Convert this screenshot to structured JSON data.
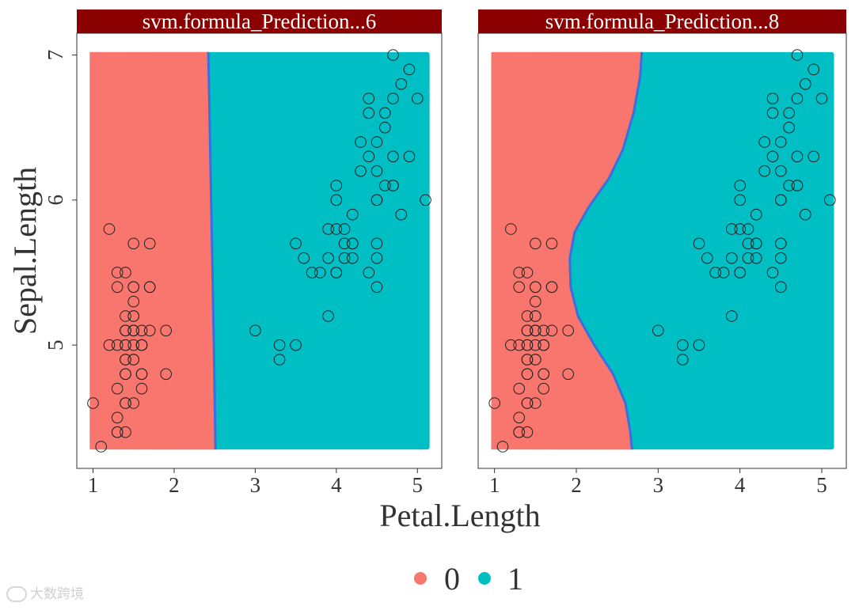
{
  "chart_data": {
    "type": "scatter",
    "xlabel": "Petal.Length",
    "ylabel": "Sepal.Length",
    "xlim": [
      0.8,
      5.3
    ],
    "ylim": [
      4.15,
      7.15
    ],
    "xticks": [
      1,
      2,
      3,
      4,
      5
    ],
    "yticks": [
      5,
      6,
      7
    ],
    "grid": false,
    "legend": {
      "position": "bottom",
      "entries": [
        {
          "label": "0",
          "color": "#F8766D"
        },
        {
          "label": "1",
          "color": "#00BFC4"
        }
      ]
    },
    "region_x_range": [
      0.96,
      5.15
    ],
    "region_y_range": [
      4.28,
      7.02
    ],
    "boundary_color": "#3B6FE0",
    "strip_color": "#8B0000",
    "panels": [
      {
        "strip_label": "svm.formula_Prediction...6",
        "boundary": [
          [
            2.42,
            7.02
          ],
          [
            2.43,
            6.8
          ],
          [
            2.45,
            6.2
          ],
          [
            2.47,
            5.6
          ],
          [
            2.49,
            5.0
          ],
          [
            2.51,
            4.28
          ]
        ]
      },
      {
        "strip_label": "svm.formula_Prediction...8",
        "boundary": [
          [
            2.8,
            7.02
          ],
          [
            2.78,
            6.85
          ],
          [
            2.7,
            6.6
          ],
          [
            2.57,
            6.35
          ],
          [
            2.4,
            6.15
          ],
          [
            2.15,
            5.95
          ],
          [
            1.98,
            5.78
          ],
          [
            1.92,
            5.6
          ],
          [
            1.93,
            5.4
          ],
          [
            2.02,
            5.2
          ],
          [
            2.22,
            5.0
          ],
          [
            2.45,
            4.8
          ],
          [
            2.6,
            4.6
          ],
          [
            2.66,
            4.4
          ],
          [
            2.68,
            4.28
          ]
        ]
      }
    ],
    "points": [
      [
        1.4,
        5.1
      ],
      [
        1.4,
        4.9
      ],
      [
        1.3,
        4.7
      ],
      [
        1.5,
        4.6
      ],
      [
        1.4,
        5.0
      ],
      [
        1.7,
        5.4
      ],
      [
        1.4,
        4.6
      ],
      [
        1.5,
        5.0
      ],
      [
        1.4,
        4.4
      ],
      [
        1.5,
        4.9
      ],
      [
        1.5,
        5.4
      ],
      [
        1.6,
        4.8
      ],
      [
        1.4,
        4.8
      ],
      [
        1.1,
        4.3
      ],
      [
        1.2,
        5.8
      ],
      [
        1.5,
        5.7
      ],
      [
        1.3,
        5.4
      ],
      [
        1.4,
        5.1
      ],
      [
        1.7,
        5.7
      ],
      [
        1.5,
        5.1
      ],
      [
        1.7,
        5.4
      ],
      [
        1.5,
        5.1
      ],
      [
        1.0,
        4.6
      ],
      [
        1.7,
        5.1
      ],
      [
        1.9,
        4.8
      ],
      [
        1.6,
        5.0
      ],
      [
        1.6,
        5.0
      ],
      [
        1.5,
        5.2
      ],
      [
        1.4,
        5.2
      ],
      [
        1.6,
        4.7
      ],
      [
        1.6,
        4.8
      ],
      [
        1.5,
        5.4
      ],
      [
        1.5,
        5.2
      ],
      [
        1.4,
        5.5
      ],
      [
        1.5,
        4.9
      ],
      [
        1.2,
        5.0
      ],
      [
        1.3,
        5.5
      ],
      [
        1.4,
        4.9
      ],
      [
        1.3,
        4.4
      ],
      [
        1.5,
        5.1
      ],
      [
        1.3,
        5.0
      ],
      [
        1.3,
        4.5
      ],
      [
        1.3,
        4.4
      ],
      [
        1.6,
        5.0
      ],
      [
        1.9,
        5.1
      ],
      [
        1.4,
        4.8
      ],
      [
        1.6,
        5.1
      ],
      [
        1.4,
        4.6
      ],
      [
        1.5,
        5.3
      ],
      [
        1.4,
        5.0
      ],
      [
        4.7,
        7.0
      ],
      [
        4.5,
        6.4
      ],
      [
        4.9,
        6.9
      ],
      [
        4.0,
        5.5
      ],
      [
        4.6,
        6.5
      ],
      [
        4.5,
        5.7
      ],
      [
        4.7,
        6.3
      ],
      [
        3.3,
        4.9
      ],
      [
        4.6,
        6.6
      ],
      [
        3.9,
        5.2
      ],
      [
        3.5,
        5.0
      ],
      [
        4.2,
        5.9
      ],
      [
        4.0,
        6.0
      ],
      [
        4.7,
        6.1
      ],
      [
        3.6,
        5.6
      ],
      [
        4.4,
        6.7
      ],
      [
        4.5,
        5.6
      ],
      [
        4.1,
        5.8
      ],
      [
        4.5,
        6.2
      ],
      [
        3.9,
        5.6
      ],
      [
        4.8,
        5.9
      ],
      [
        4.0,
        6.1
      ],
      [
        4.9,
        6.3
      ],
      [
        4.7,
        6.1
      ],
      [
        4.3,
        6.4
      ],
      [
        4.4,
        6.6
      ],
      [
        4.8,
        6.8
      ],
      [
        5.0,
        6.7
      ],
      [
        4.5,
        6.0
      ],
      [
        3.5,
        5.7
      ],
      [
        3.8,
        5.5
      ],
      [
        3.7,
        5.5
      ],
      [
        3.9,
        5.8
      ],
      [
        5.1,
        6.0
      ],
      [
        4.5,
        5.4
      ],
      [
        4.5,
        6.0
      ],
      [
        4.7,
        6.7
      ],
      [
        4.4,
        6.3
      ],
      [
        4.1,
        5.6
      ],
      [
        4.0,
        5.5
      ],
      [
        4.4,
        5.5
      ],
      [
        4.6,
        6.1
      ],
      [
        4.0,
        5.8
      ],
      [
        3.3,
        5.0
      ],
      [
        4.2,
        5.6
      ],
      [
        4.2,
        5.7
      ],
      [
        4.2,
        5.7
      ],
      [
        4.3,
        6.2
      ],
      [
        3.0,
        5.1
      ],
      [
        4.1,
        5.7
      ]
    ]
  }
}
